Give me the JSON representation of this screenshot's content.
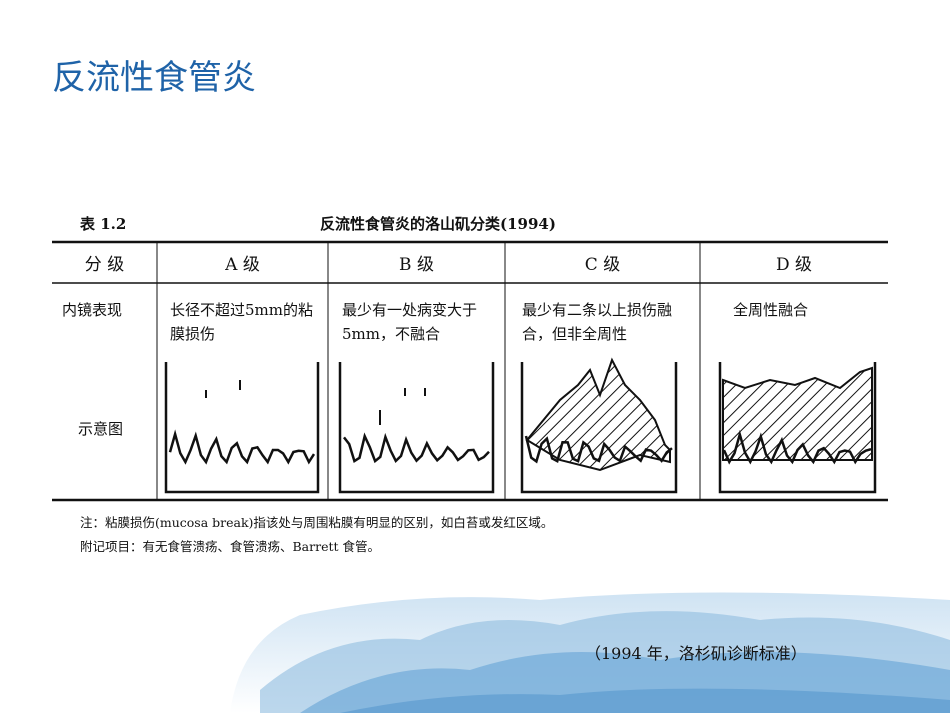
{
  "header": {
    "title": "反流性食管炎"
  },
  "table": {
    "label": "表 1.2",
    "caption": "反流性食管炎的洛山矶分类(1994)",
    "columns": [
      "分 级",
      "A 级",
      "B 级",
      "C 级",
      "D 级"
    ],
    "rows": [
      [
        "内镜表现",
        "长径不超过5mm的粘膜损伤",
        "最少有一处病变大于5mm，不融合",
        "最少有二条以上损伤融合，但非全周性",
        "全周性融合"
      ],
      [
        "示意图"
      ]
    ]
  },
  "notes": [
    "注：粘膜损伤(mucosa break)指该处与周围粘膜有明显的区别，如白苔或发红区域。",
    "附记项目：有无食管溃疡、食管溃疡、Barrett 食管。"
  ],
  "footer": {
    "caption": "（1994 年，洛杉矶诊断标准）"
  }
}
